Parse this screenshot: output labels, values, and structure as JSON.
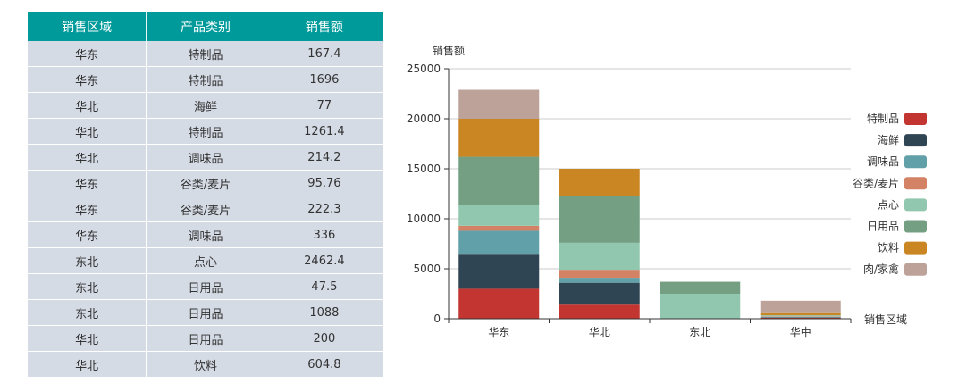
{
  "table": {
    "headers": [
      "销售区域",
      "产品类别",
      "销售额"
    ],
    "rows": [
      [
        "华东",
        "特制品",
        "167.4"
      ],
      [
        "华东",
        "特制品",
        "1696"
      ],
      [
        "华北",
        "海鲜",
        "77"
      ],
      [
        "华北",
        "特制品",
        "1261.4"
      ],
      [
        "华北",
        "调味品",
        "214.2"
      ],
      [
        "华东",
        "谷类/麦片",
        "95.76"
      ],
      [
        "华东",
        "谷类/麦片",
        "222.3"
      ],
      [
        "华东",
        "调味品",
        "336"
      ],
      [
        "东北",
        "点心",
        "2462.4"
      ],
      [
        "东北",
        "日用品",
        "47.5"
      ],
      [
        "东北",
        "日用品",
        "1088"
      ],
      [
        "华北",
        "日用品",
        "200"
      ],
      [
        "华北",
        "饮料",
        "604.8"
      ]
    ]
  },
  "chart_data": {
    "type": "bar",
    "stacked": true,
    "title": "",
    "xlabel": "销售区域",
    "ylabel": "销售额",
    "ylim": [
      0,
      25000
    ],
    "yticks": [
      0,
      5000,
      10000,
      15000,
      20000,
      25000
    ],
    "grid": true,
    "legend_position": "right",
    "categories": [
      "华东",
      "华北",
      "东北",
      "华中"
    ],
    "series": [
      {
        "name": "特制品",
        "color": "#c23531",
        "values": [
          3000,
          1500,
          0,
          100
        ]
      },
      {
        "name": "海鲜",
        "color": "#2f4554",
        "values": [
          3500,
          2100,
          0,
          50
        ]
      },
      {
        "name": "调味品",
        "color": "#61a0a8",
        "values": [
          2300,
          500,
          0,
          50
        ]
      },
      {
        "name": "谷类/麦片",
        "color": "#d48265",
        "values": [
          500,
          800,
          0,
          50
        ]
      },
      {
        "name": "点心",
        "color": "#91c7ae",
        "values": [
          2100,
          2700,
          2500,
          100
        ]
      },
      {
        "name": "日用品",
        "color": "#749f83",
        "values": [
          4800,
          4700,
          1200,
          0
        ]
      },
      {
        "name": "饮料",
        "color": "#ca8622",
        "values": [
          3800,
          2700,
          0,
          300
        ]
      },
      {
        "name": "肉/家禽",
        "color": "#bda29a",
        "values": [
          2900,
          0,
          0,
          1150
        ]
      }
    ]
  }
}
